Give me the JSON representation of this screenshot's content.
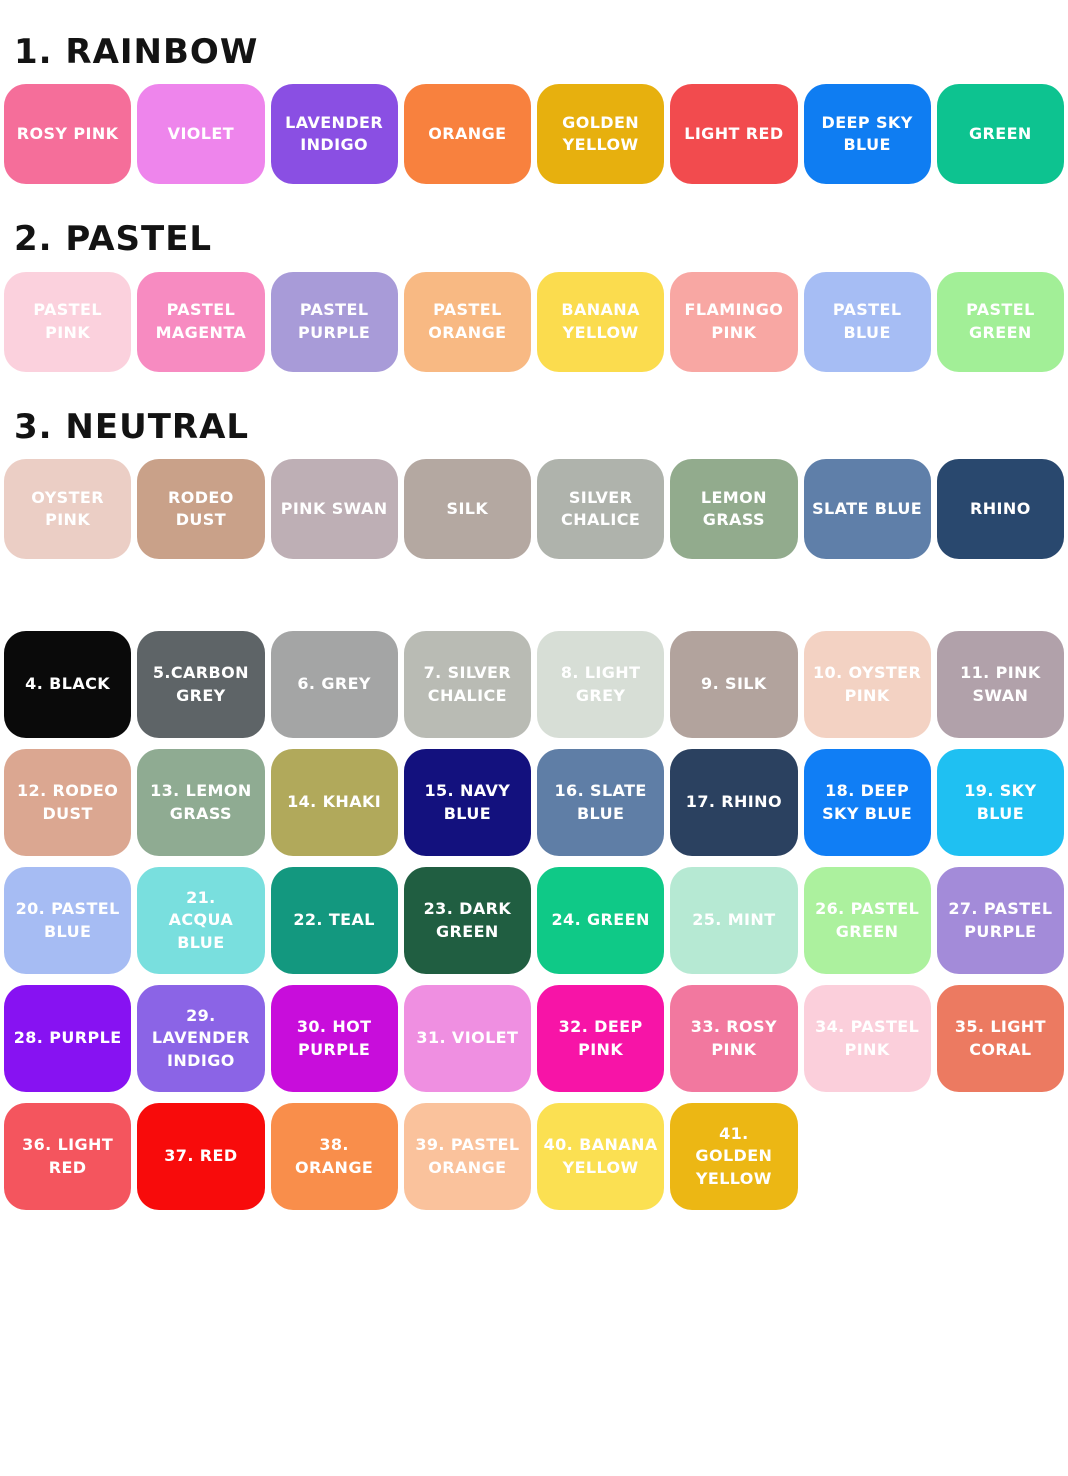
{
  "palette": {
    "label_text_color": "#FFFFFF",
    "sections": [
      {
        "heading": "1. RAINBOW",
        "swatches": [
          {
            "name": "rosy-pink",
            "label": "ROSY PINK",
            "color": "#F56E9A"
          },
          {
            "name": "violet",
            "label": "VIOLET",
            "color": "#EE85EC"
          },
          {
            "name": "lavender-indigo",
            "label": "LAVENDER\nINDIGO",
            "color": "#8A4FE3"
          },
          {
            "name": "orange",
            "label": "ORANGE",
            "color": "#F8813E"
          },
          {
            "name": "golden-yellow",
            "label": "GOLDEN\nYELLOW",
            "color": "#E7B00E"
          },
          {
            "name": "light-red",
            "label": "LIGHT RED",
            "color": "#F24B4E"
          },
          {
            "name": "deep-sky-blue",
            "label": "DEEP SKY\nBLUE",
            "color": "#0F7DF2"
          },
          {
            "name": "green",
            "label": "GREEN",
            "color": "#0DC390"
          }
        ]
      },
      {
        "heading": "2. PASTEL",
        "swatches": [
          {
            "name": "pastel-pink",
            "label": "PASTEL\nPINK",
            "color": "#FBD1DD"
          },
          {
            "name": "pastel-magenta",
            "label": "PASTEL\nMAGENTA",
            "color": "#F78BC1"
          },
          {
            "name": "pastel-purple",
            "label": "PASTEL\nPURPLE",
            "color": "#A89BD8"
          },
          {
            "name": "pastel-orange",
            "label": "PASTEL\nORANGE",
            "color": "#F8B983"
          },
          {
            "name": "banana-yellow",
            "label": "BANANA\nYELLOW",
            "color": "#FBDC4E"
          },
          {
            "name": "flamingo-pink",
            "label": "FLAMINGO\nPINK",
            "color": "#F8A7A3"
          },
          {
            "name": "pastel-blue",
            "label": "PASTEL\nBLUE",
            "color": "#A6BDF4"
          },
          {
            "name": "pastel-green",
            "label": "PASTEL\nGREEN",
            "color": "#A2EF97"
          }
        ]
      },
      {
        "heading": "3. NEUTRAL",
        "swatches": [
          {
            "name": "oyster-pink",
            "label": "OYSTER\nPINK",
            "color": "#EBCEC5"
          },
          {
            "name": "rodeo-dust",
            "label": "RODEO\nDUST",
            "color": "#C9A189"
          },
          {
            "name": "pink-swan",
            "label": "PINK SWAN",
            "color": "#BEAFB5"
          },
          {
            "name": "silk",
            "label": "SILK",
            "color": "#B4A8A1"
          },
          {
            "name": "silver-chalice",
            "label": "SILVER\nCHALICE",
            "color": "#AFB3AC"
          },
          {
            "name": "lemon-grass",
            "label": "LEMON\nGRASS",
            "color": "#92AB8D"
          },
          {
            "name": "slate-blue",
            "label": "SLATE BLUE",
            "color": "#5F7FA9"
          },
          {
            "name": "rhino",
            "label": "RHINO",
            "color": "#29486E"
          }
        ]
      }
    ],
    "numbered_swatches": [
      {
        "name": "black",
        "label": "4. BLACK",
        "color": "#0A0A0A"
      },
      {
        "name": "carbon-grey",
        "label": "5.CARBON\nGREY",
        "color": "#5E6467"
      },
      {
        "name": "grey",
        "label": "6. GREY",
        "color": "#A4A5A5"
      },
      {
        "name": "silver-chalice",
        "label": "7. SILVER\nCHALICE",
        "color": "#B9BBB4"
      },
      {
        "name": "light-grey",
        "label": "8. LIGHT\nGREY",
        "color": "#D7DED6"
      },
      {
        "name": "silk",
        "label": "9. SILK",
        "color": "#B2A39D"
      },
      {
        "name": "oyster-pink",
        "label": "10. OYSTER\nPINK",
        "color": "#F3D2C3"
      },
      {
        "name": "pink-swan",
        "label": "11. PINK\nSWAN",
        "color": "#B1A1AA"
      },
      {
        "name": "rodeo-dust",
        "label": "12. RODEO\nDUST",
        "color": "#DBA791"
      },
      {
        "name": "lemon-grass",
        "label": "13. LEMON\nGRASS",
        "color": "#8FAB92"
      },
      {
        "name": "khaki",
        "label": "14. KHAKI",
        "color": "#B1A95B"
      },
      {
        "name": "navy-blue",
        "label": "15. NAVY\nBLUE",
        "color": "#13117E"
      },
      {
        "name": "slate-blue",
        "label": "16. SLATE\nBLUE",
        "color": "#5F7EA6"
      },
      {
        "name": "rhino",
        "label": "17. RHINO",
        "color": "#2B4160"
      },
      {
        "name": "deep-sky-blue",
        "label": "18. DEEP\nSKY BLUE",
        "color": "#107EF5"
      },
      {
        "name": "sky-blue",
        "label": "19. SKY\nBLUE",
        "color": "#1FC0F2"
      },
      {
        "name": "pastel-blue",
        "label": "20. PASTEL\nBLUE",
        "color": "#A6BCF3"
      },
      {
        "name": "acqua-blue",
        "label": "21.\nACQUA\nBLUE",
        "color": "#79DFDE"
      },
      {
        "name": "teal",
        "label": "22. TEAL",
        "color": "#13987F"
      },
      {
        "name": "dark-green",
        "label": "23. DARK\nGREEN",
        "color": "#205E41"
      },
      {
        "name": "green",
        "label": "24. GREEN",
        "color": "#0FC987"
      },
      {
        "name": "mint",
        "label": "25. MINT",
        "color": "#B6E9D3"
      },
      {
        "name": "pastel-green",
        "label": "26. PASTEL\nGREEN",
        "color": "#ACF19E"
      },
      {
        "name": "pastel-purple",
        "label": "27. PASTEL\nPURPLE",
        "color": "#A38BD9"
      },
      {
        "name": "purple",
        "label": "28. PURPLE",
        "color": "#8712F2"
      },
      {
        "name": "lavender-indigo",
        "label": "29.\nLAVENDER\nINDIGO",
        "color": "#8B64E6"
      },
      {
        "name": "hot-purple",
        "label": "30. HOT\nPURPLE",
        "color": "#C80DDB"
      },
      {
        "name": "violet",
        "label": "31. VIOLET",
        "color": "#EF8FE1"
      },
      {
        "name": "deep-pink",
        "label": "32. DEEP\nPINK",
        "color": "#F714A7"
      },
      {
        "name": "rosy-pink",
        "label": "33. ROSY\nPINK",
        "color": "#F2789F"
      },
      {
        "name": "pastel-pink",
        "label": "34. PASTEL\nPINK",
        "color": "#FBCFDB"
      },
      {
        "name": "light-coral",
        "label": "35. LIGHT\nCORAL",
        "color": "#EC7A61"
      },
      {
        "name": "light-red",
        "label": "36. LIGHT\nRED",
        "color": "#F4555E"
      },
      {
        "name": "red",
        "label": "37. RED",
        "color": "#F80B0B"
      },
      {
        "name": "orange",
        "label": "38.\nORANGE",
        "color": "#F98E4B"
      },
      {
        "name": "pastel-orange",
        "label": "39. PASTEL\nORANGE",
        "color": "#FAC29C"
      },
      {
        "name": "banana-yellow",
        "label": "40. BANANA\nYELLOW",
        "color": "#FBE052"
      },
      {
        "name": "golden-yellow",
        "label": "41.\nGOLDEN\nYELLOW",
        "color": "#ECB714"
      }
    ]
  }
}
